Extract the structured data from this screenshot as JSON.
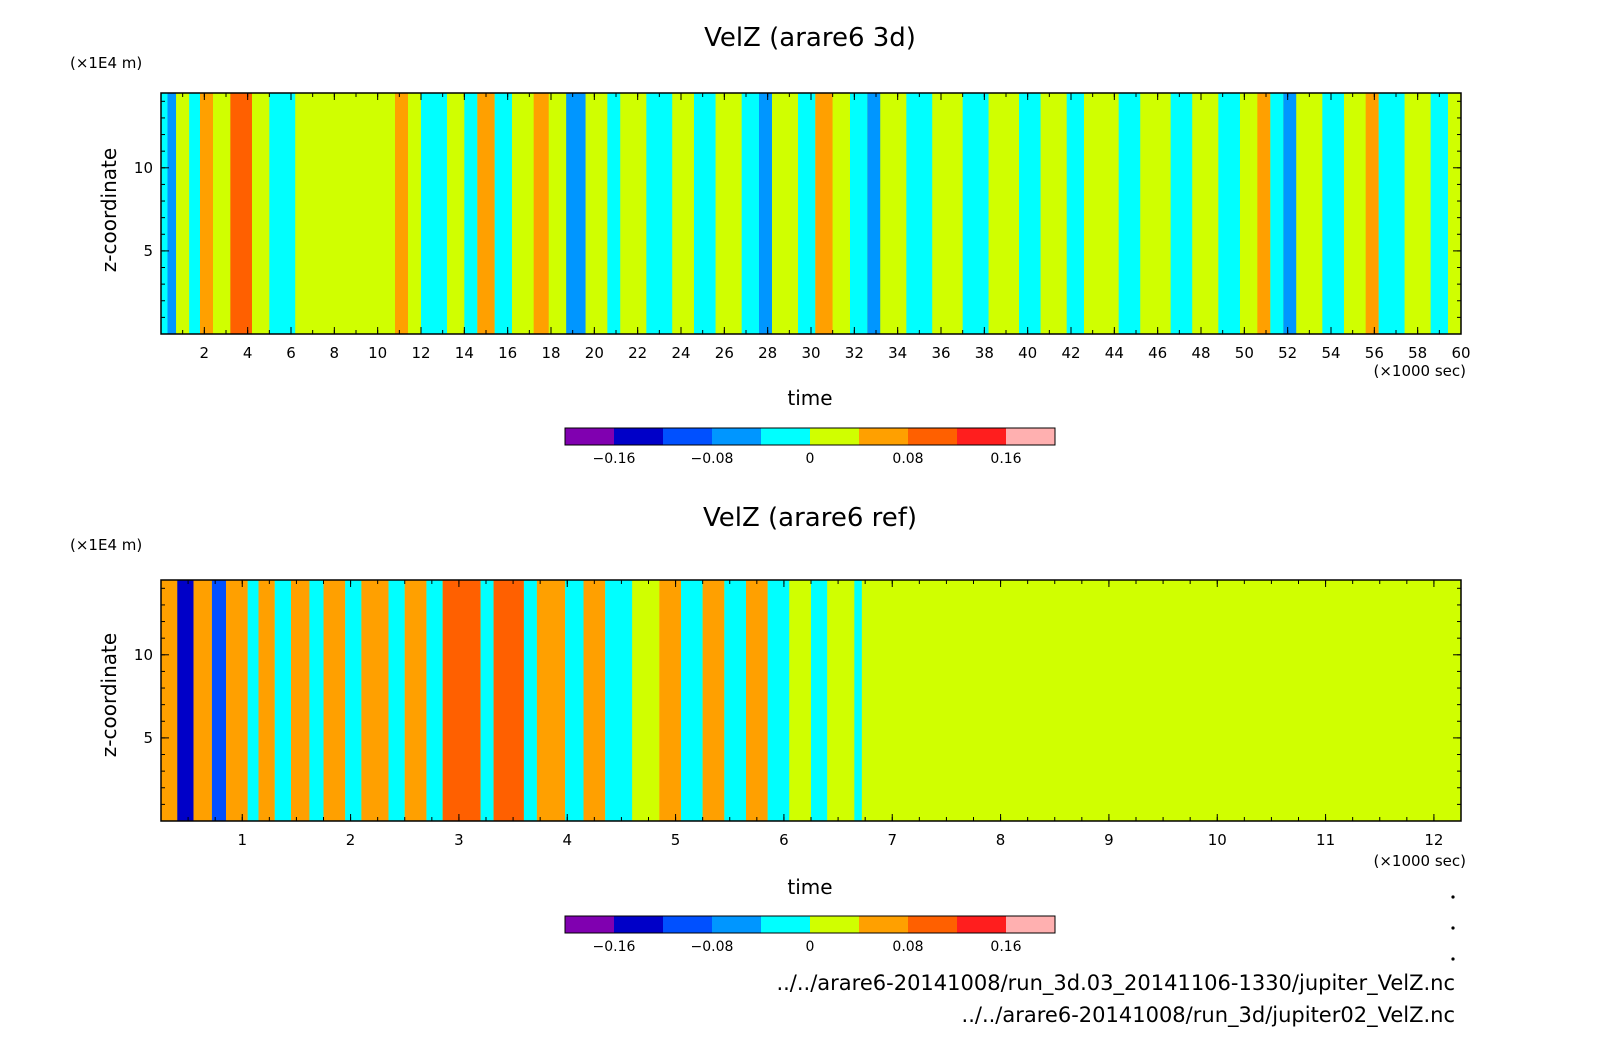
{
  "chart_data": [
    {
      "type": "heatmap",
      "title": "VelZ (arare6 3d)",
      "xlabel": "time",
      "ylabel": "z-coordinate",
      "x_unit": "(×1000 sec)",
      "y_unit": "(×1E4 m)",
      "xlim": [
        0,
        60
      ],
      "ylim": [
        0,
        14.5
      ],
      "x_ticks": [
        "2",
        "4",
        "6",
        "8",
        "10",
        "12",
        "14",
        "16",
        "18",
        "20",
        "22",
        "24",
        "26",
        "28",
        "30",
        "32",
        "34",
        "36",
        "38",
        "40",
        "42",
        "44",
        "46",
        "48",
        "50",
        "52",
        "54",
        "56",
        "58",
        "60"
      ],
      "y_ticks": [
        "5",
        "10"
      ],
      "colorbar": {
        "levels": [
          -0.2,
          -0.16,
          -0.12,
          -0.08,
          -0.04,
          0,
          0.04,
          0.08,
          0.12,
          0.16,
          0.2
        ],
        "colors": [
          "#8000b0",
          "#0000c8",
          "#0050ff",
          "#0096ff",
          "#00ffff",
          "#d0ff00",
          "#ffa000",
          "#ff6000",
          "#ff1e1e",
          "#ffb0b0"
        ],
        "tick_labels": [
          "-0.16",
          "-0.08",
          "0",
          "0.08",
          "0.16"
        ]
      },
      "columns": [
        {
          "x": [
            0,
            0.3
          ],
          "v": -0.02
        },
        {
          "x": [
            0.3,
            0.7
          ],
          "v": -0.06
        },
        {
          "x": [
            0.7,
            1.3
          ],
          "v": 0.02
        },
        {
          "x": [
            1.3,
            1.8
          ],
          "v": -0.02
        },
        {
          "x": [
            1.8,
            2.4
          ],
          "v": 0.05
        },
        {
          "x": [
            2.4,
            3.2
          ],
          "v": 0.02
        },
        {
          "x": [
            3.2,
            4.2
          ],
          "v": 0.09
        },
        {
          "x": [
            4.2,
            5.0
          ],
          "v": 0.02
        },
        {
          "x": [
            5.0,
            6.2
          ],
          "v": -0.02
        },
        {
          "x": [
            6.2,
            10.8
          ],
          "v": 0.02
        },
        {
          "x": [
            10.8,
            11.4
          ],
          "v": 0.05
        },
        {
          "x": [
            11.4,
            12.0
          ],
          "v": 0.02
        },
        {
          "x": [
            12.0,
            13.2
          ],
          "v": -0.02
        },
        {
          "x": [
            13.2,
            14.0
          ],
          "v": 0.02
        },
        {
          "x": [
            14.0,
            14.6
          ],
          "v": -0.02
        },
        {
          "x": [
            14.6,
            15.4
          ],
          "v": 0.05
        },
        {
          "x": [
            15.4,
            16.2
          ],
          "v": -0.02
        },
        {
          "x": [
            16.2,
            17.2
          ],
          "v": 0.02
        },
        {
          "x": [
            17.2,
            17.9
          ],
          "v": 0.06
        },
        {
          "x": [
            17.9,
            18.7
          ],
          "v": 0.02
        },
        {
          "x": [
            18.7,
            19.6
          ],
          "v": -0.06
        },
        {
          "x": [
            19.6,
            20.6
          ],
          "v": 0.02
        },
        {
          "x": [
            20.6,
            21.2
          ],
          "v": -0.02
        },
        {
          "x": [
            21.2,
            22.4
          ],
          "v": 0.02
        },
        {
          "x": [
            22.4,
            23.6
          ],
          "v": -0.02
        },
        {
          "x": [
            23.6,
            24.6
          ],
          "v": 0.02
        },
        {
          "x": [
            24.6,
            25.6
          ],
          "v": -0.02
        },
        {
          "x": [
            25.6,
            26.8
          ],
          "v": 0.02
        },
        {
          "x": [
            26.8,
            27.6
          ],
          "v": -0.02
        },
        {
          "x": [
            27.6,
            28.2
          ],
          "v": -0.06
        },
        {
          "x": [
            28.2,
            29.4
          ],
          "v": 0.02
        },
        {
          "x": [
            29.4,
            30.2
          ],
          "v": -0.02
        },
        {
          "x": [
            30.2,
            31.0
          ],
          "v": 0.06
        },
        {
          "x": [
            31.0,
            31.8
          ],
          "v": 0.02
        },
        {
          "x": [
            31.8,
            32.6
          ],
          "v": -0.02
        },
        {
          "x": [
            32.6,
            33.2
          ],
          "v": -0.06
        },
        {
          "x": [
            33.2,
            34.4
          ],
          "v": 0.02
        },
        {
          "x": [
            34.4,
            35.6
          ],
          "v": -0.02
        },
        {
          "x": [
            35.6,
            37.0
          ],
          "v": 0.02
        },
        {
          "x": [
            37.0,
            38.2
          ],
          "v": -0.02
        },
        {
          "x": [
            38.2,
            39.6
          ],
          "v": 0.02
        },
        {
          "x": [
            39.6,
            40.6
          ],
          "v": -0.02
        },
        {
          "x": [
            40.6,
            41.8
          ],
          "v": 0.02
        },
        {
          "x": [
            41.8,
            42.6
          ],
          "v": -0.02
        },
        {
          "x": [
            42.6,
            44.2
          ],
          "v": 0.02
        },
        {
          "x": [
            44.2,
            45.2
          ],
          "v": -0.02
        },
        {
          "x": [
            45.2,
            46.6
          ],
          "v": 0.02
        },
        {
          "x": [
            46.6,
            47.6
          ],
          "v": -0.02
        },
        {
          "x": [
            47.6,
            48.8
          ],
          "v": 0.02
        },
        {
          "x": [
            48.8,
            49.8
          ],
          "v": -0.02
        },
        {
          "x": [
            49.8,
            50.6
          ],
          "v": 0.02
        },
        {
          "x": [
            50.6,
            51.2
          ],
          "v": 0.05
        },
        {
          "x": [
            51.2,
            51.8
          ],
          "v": -0.02
        },
        {
          "x": [
            51.8,
            52.4
          ],
          "v": -0.06
        },
        {
          "x": [
            52.4,
            53.6
          ],
          "v": 0.02
        },
        {
          "x": [
            53.6,
            54.6
          ],
          "v": -0.02
        },
        {
          "x": [
            54.6,
            55.6
          ],
          "v": 0.02
        },
        {
          "x": [
            55.6,
            56.2
          ],
          "v": 0.05
        },
        {
          "x": [
            56.2,
            57.4
          ],
          "v": -0.02
        },
        {
          "x": [
            57.4,
            58.6
          ],
          "v": 0.02
        },
        {
          "x": [
            58.6,
            59.4
          ],
          "v": -0.02
        },
        {
          "x": [
            59.4,
            60
          ],
          "v": 0.02
        }
      ]
    },
    {
      "type": "heatmap",
      "title": "VelZ (arare6 ref)",
      "xlabel": "time",
      "ylabel": "z-coordinate",
      "x_unit": "(×1000 sec)",
      "y_unit": "(×1E4 m)",
      "xlim": [
        0.25,
        12.25
      ],
      "ylim": [
        0,
        14.5
      ],
      "x_ticks": [
        "1",
        "2",
        "3",
        "4",
        "5",
        "6",
        "7",
        "8",
        "9",
        "10",
        "11",
        "12"
      ],
      "y_ticks": [
        "5",
        "10"
      ],
      "colorbar": {
        "levels": [
          -0.2,
          -0.16,
          -0.12,
          -0.08,
          -0.04,
          0,
          0.04,
          0.08,
          0.12,
          0.16,
          0.2
        ],
        "colors": [
          "#8000b0",
          "#0000c8",
          "#0050ff",
          "#0096ff",
          "#00ffff",
          "#d0ff00",
          "#ffa000",
          "#ff6000",
          "#ff1e1e",
          "#ffb0b0"
        ],
        "tick_labels": [
          "-0.16",
          "-0.08",
          "0",
          "0.08",
          "0.16"
        ]
      },
      "columns": [
        {
          "x": [
            0.25,
            0.4
          ],
          "v": 0.05
        },
        {
          "x": [
            0.4,
            0.55
          ],
          "v": -0.16
        },
        {
          "x": [
            0.55,
            0.72
          ],
          "v": 0.06
        },
        {
          "x": [
            0.72,
            0.85
          ],
          "v": -0.1
        },
        {
          "x": [
            0.85,
            1.05
          ],
          "v": 0.06
        },
        {
          "x": [
            1.05,
            1.15
          ],
          "v": -0.02
        },
        {
          "x": [
            1.15,
            1.3
          ],
          "v": 0.06
        },
        {
          "x": [
            1.3,
            1.45
          ],
          "v": -0.02
        },
        {
          "x": [
            1.45,
            1.62
          ],
          "v": 0.06
        },
        {
          "x": [
            1.62,
            1.75
          ],
          "v": -0.02
        },
        {
          "x": [
            1.75,
            1.95
          ],
          "v": 0.06
        },
        {
          "x": [
            1.95,
            2.1
          ],
          "v": -0.02
        },
        {
          "x": [
            2.1,
            2.35
          ],
          "v": 0.06
        },
        {
          "x": [
            2.35,
            2.5
          ],
          "v": -0.02
        },
        {
          "x": [
            2.5,
            2.7
          ],
          "v": 0.07
        },
        {
          "x": [
            2.7,
            2.85
          ],
          "v": -0.02
        },
        {
          "x": [
            2.85,
            3.2
          ],
          "v": 0.09
        },
        {
          "x": [
            3.2,
            3.32
          ],
          "v": -0.02
        },
        {
          "x": [
            3.32,
            3.6
          ],
          "v": 0.09
        },
        {
          "x": [
            3.6,
            3.72
          ],
          "v": -0.02
        },
        {
          "x": [
            3.72,
            3.98
          ],
          "v": 0.07
        },
        {
          "x": [
            3.98,
            4.15
          ],
          "v": -0.02
        },
        {
          "x": [
            4.15,
            4.35
          ],
          "v": 0.05
        },
        {
          "x": [
            4.35,
            4.6
          ],
          "v": -0.02
        },
        {
          "x": [
            4.6,
            4.85
          ],
          "v": 0.02
        },
        {
          "x": [
            4.85,
            5.05
          ],
          "v": 0.05
        },
        {
          "x": [
            5.05,
            5.25
          ],
          "v": -0.02
        },
        {
          "x": [
            5.25,
            5.45
          ],
          "v": 0.06
        },
        {
          "x": [
            5.45,
            5.65
          ],
          "v": -0.02
        },
        {
          "x": [
            5.65,
            5.85
          ],
          "v": 0.05
        },
        {
          "x": [
            5.85,
            6.05
          ],
          "v": -0.02
        },
        {
          "x": [
            6.05,
            6.25
          ],
          "v": 0.02
        },
        {
          "x": [
            6.25,
            6.4
          ],
          "v": -0.02
        },
        {
          "x": [
            6.4,
            6.65
          ],
          "v": 0.02
        },
        {
          "x": [
            6.65,
            6.72
          ],
          "v": -0.02
        },
        {
          "x": [
            6.72,
            12.25
          ],
          "v": 0.02
        }
      ]
    }
  ],
  "footer": {
    "path_1": "../../arare6-20141008/run_3d.03_20141106-1330/jupiter_VelZ.nc",
    "path_2": "../../arare6-20141008/run_3d/jupiter02_VelZ.nc"
  }
}
